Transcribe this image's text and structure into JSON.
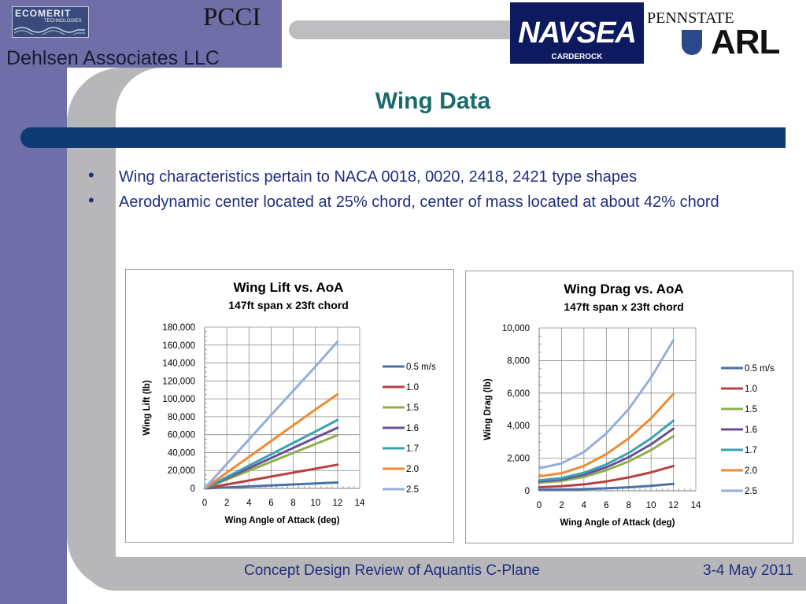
{
  "header": {
    "company": "Dehlsen Associates LLC",
    "logos": {
      "ecomerit": "ECOMERIT",
      "ecomerit_sub": "TECHNOLOGIES",
      "pcci": "PCCI",
      "navsea": "NAVSEA",
      "navsea_sub": "CARDEROCK",
      "pennstate": "PENNSTATE",
      "arl": "ARL"
    }
  },
  "slide": {
    "title": "Wing Data",
    "bullets": [
      "Wing characteristics pertain to NACA 0018, 0020, 2418, 2421 type shapes",
      " Aerodynamic center  located at 25% chord, center of mass located at about 42% chord"
    ]
  },
  "footer": {
    "text": "Concept Design Review of Aquantis C-Plane",
    "date": "3-4 May 2011"
  },
  "colors": {
    "0.5 m/s": "#4a72a8",
    "1.0": "#b8403f",
    "1.5": "#8db04a",
    "1.6": "#6b4f96",
    "1.7": "#3ba2b4",
    "2.0": "#ee8a35",
    "2.5": "#94aed8"
  },
  "chart_data": [
    {
      "type": "line",
      "title": "Wing Lift vs. AoA",
      "subtitle": "147ft span x 23ft chord",
      "xlabel": "Wing Angle  of Attack (deg)",
      "ylabel": "Wing Lift (lb)",
      "xlim": [
        0,
        14
      ],
      "ylim": [
        0,
        180000
      ],
      "xticks": [
        0,
        2,
        4,
        6,
        8,
        10,
        12,
        14
      ],
      "yticks": [
        0,
        20000,
        40000,
        60000,
        80000,
        100000,
        120000,
        140000,
        160000,
        180000
      ],
      "ytick_labels": [
        "0",
        "20,000",
        "40,000",
        "60,000",
        "80,000",
        "100,000",
        "120,000",
        "140,000",
        "160,000",
        "180,000"
      ],
      "grid": true,
      "legend": "right",
      "x": [
        0,
        2,
        4,
        6,
        8,
        10,
        12
      ],
      "series": [
        {
          "name": "0.5 m/s",
          "values": [
            0,
            1100,
            2200,
            3300,
            4400,
            5500,
            6600
          ]
        },
        {
          "name": "1.0",
          "values": [
            0,
            4400,
            8800,
            13200,
            17600,
            22000,
            26500
          ]
        },
        {
          "name": "1.5",
          "values": [
            0,
            9900,
            19800,
            29700,
            39600,
            49500,
            59500
          ]
        },
        {
          "name": "1.6",
          "values": [
            0,
            11300,
            22600,
            33900,
            45200,
            56500,
            67700
          ]
        },
        {
          "name": "1.7",
          "values": [
            0,
            12700,
            25400,
            38100,
            50800,
            63500,
            76400
          ]
        },
        {
          "name": "2.0",
          "values": [
            0,
            17600,
            35200,
            52800,
            70400,
            88000,
            105000
          ]
        },
        {
          "name": "2.5",
          "values": [
            0,
            27300,
            54600,
            81900,
            109000,
            136000,
            164000
          ]
        }
      ]
    },
    {
      "type": "line",
      "title": "Wing Drag vs. AoA",
      "subtitle": "147ft span x 23ft chord",
      "xlabel": "Wing Angle  of Attack (deg)",
      "ylabel": "Wing Drag (lb)",
      "xlim": [
        0,
        14
      ],
      "ylim": [
        0,
        10000
      ],
      "xticks": [
        0,
        2,
        4,
        6,
        8,
        10,
        12,
        14
      ],
      "yticks": [
        0,
        2000,
        4000,
        6000,
        8000,
        10000
      ],
      "ytick_labels": [
        "0",
        "2,000",
        "4,000",
        "6,000",
        "8,000",
        "10,000"
      ],
      "grid": true,
      "legend": "right",
      "x": [
        0,
        2,
        4,
        6,
        8,
        10,
        12
      ],
      "series": [
        {
          "name": "0.5 m/s",
          "values": [
            60,
            70,
            100,
            150,
            210,
            300,
            420
          ]
        },
        {
          "name": "1.0",
          "values": [
            220,
            280,
            390,
            570,
            820,
            1130,
            1520
          ]
        },
        {
          "name": "1.5",
          "values": [
            500,
            600,
            850,
            1260,
            1800,
            2500,
            3350
          ]
        },
        {
          "name": "1.6",
          "values": [
            570,
            690,
            980,
            1440,
            2060,
            2850,
            3820
          ]
        },
        {
          "name": "1.7",
          "values": [
            640,
            780,
            1100,
            1620,
            2320,
            3220,
            4300
          ]
        },
        {
          "name": "2.0",
          "values": [
            880,
            1080,
            1520,
            2250,
            3220,
            4450,
            5950
          ]
        },
        {
          "name": "2.5",
          "values": [
            1380,
            1680,
            2380,
            3520,
            5020,
            6950,
            9250
          ]
        }
      ]
    }
  ]
}
